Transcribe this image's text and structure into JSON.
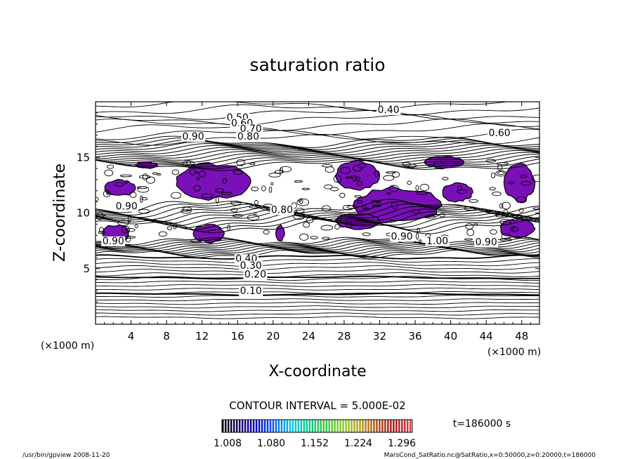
{
  "chart_data": {
    "type": "contour",
    "title": "saturation ratio",
    "xlabel": "X-coordinate",
    "ylabel": "Z-coordinate",
    "x_unit": "(×1000 m)",
    "y_unit": "(×1000 m)",
    "x_ticks": [
      4,
      8,
      12,
      16,
      20,
      24,
      28,
      32,
      36,
      40,
      44,
      48
    ],
    "y_ticks": [
      5,
      10,
      15
    ],
    "xlim": [
      0,
      50
    ],
    "ylim": [
      0,
      20
    ],
    "contour_interval_text": "CONTOUR INTERVAL = 5.000E-02",
    "time_text": "t=186000 s",
    "contour_labels": [
      {
        "text": "0.40",
        "x": 33.0,
        "z": 19.0
      },
      {
        "text": "0.50",
        "x": 16.0,
        "z": 18.3
      },
      {
        "text": "0.60",
        "x": 16.5,
        "z": 17.8
      },
      {
        "text": "0.70",
        "x": 17.5,
        "z": 17.3
      },
      {
        "text": "0.80",
        "x": 17.2,
        "z": 16.6
      },
      {
        "text": "0.90",
        "x": 11.0,
        "z": 16.6
      },
      {
        "text": "0.60",
        "x": 45.5,
        "z": 16.9
      },
      {
        "text": "0.90",
        "x": 3.5,
        "z": 10.3
      },
      {
        "text": "0.80",
        "x": 21.0,
        "z": 10.0
      },
      {
        "text": "0.90",
        "x": 2.0,
        "z": 7.2
      },
      {
        "text": "0.90",
        "x": 34.5,
        "z": 7.6
      },
      {
        "text": "1.00",
        "x": 38.5,
        "z": 7.2
      },
      {
        "text": "0.90",
        "x": 44.0,
        "z": 7.1
      },
      {
        "text": "0.40",
        "x": 17.0,
        "z": 5.6
      },
      {
        "text": "0.30",
        "x": 17.5,
        "z": 5.0
      },
      {
        "text": "0.20",
        "x": 18.0,
        "z": 4.2
      },
      {
        "text": "0.10",
        "x": 17.5,
        "z": 2.7
      }
    ],
    "supersaturated_regions": [
      {
        "x0": 9.0,
        "x1": 17.5,
        "z0": 11.2,
        "z1": 14.5
      },
      {
        "x0": 1.0,
        "x1": 4.5,
        "z0": 11.5,
        "z1": 13.0
      },
      {
        "x0": 4.5,
        "x1": 7.0,
        "z0": 14.0,
        "z1": 14.6
      },
      {
        "x0": 11.0,
        "x1": 14.5,
        "z0": 7.3,
        "z1": 9.0
      },
      {
        "x0": 0.8,
        "x1": 3.8,
        "z0": 7.3,
        "z1": 9.0
      },
      {
        "x0": 27.0,
        "x1": 32.0,
        "z0": 12.0,
        "z1": 14.7
      },
      {
        "x0": 29.0,
        "x1": 39.0,
        "z0": 9.0,
        "z1": 12.3
      },
      {
        "x0": 27.0,
        "x1": 32.0,
        "z0": 8.5,
        "z1": 10.0
      },
      {
        "x0": 37.0,
        "x1": 41.5,
        "z0": 14.0,
        "z1": 15.1
      },
      {
        "x0": 39.0,
        "x1": 42.5,
        "z0": 11.0,
        "z1": 12.7
      },
      {
        "x0": 45.5,
        "x1": 49.5,
        "z0": 7.7,
        "z1": 9.5
      },
      {
        "x0": 46.0,
        "x1": 49.5,
        "z0": 11.0,
        "z1": 14.5
      },
      {
        "x0": 20.3,
        "x1": 21.3,
        "z0": 7.5,
        "z1": 8.9
      }
    ],
    "colorbar": {
      "ticks": [
        "1.008",
        "1.080",
        "1.152",
        "1.224",
        "1.296"
      ],
      "colors": [
        "#000000",
        "#1a0060",
        "#0000c8",
        "#0060ff",
        "#00c8e6",
        "#00d08a",
        "#3ac83a",
        "#8ccc28",
        "#b4a020",
        "#b45014",
        "#a01414",
        "#d23c46"
      ]
    },
    "fill_color": "#7a10b8",
    "footer_left": "/usr/bin/gpview  2008-11-20",
    "footer_right": "MarsCond_SatRatio.nc@SatRatio,x=0:50000,z=0:20000,t=186000"
  }
}
